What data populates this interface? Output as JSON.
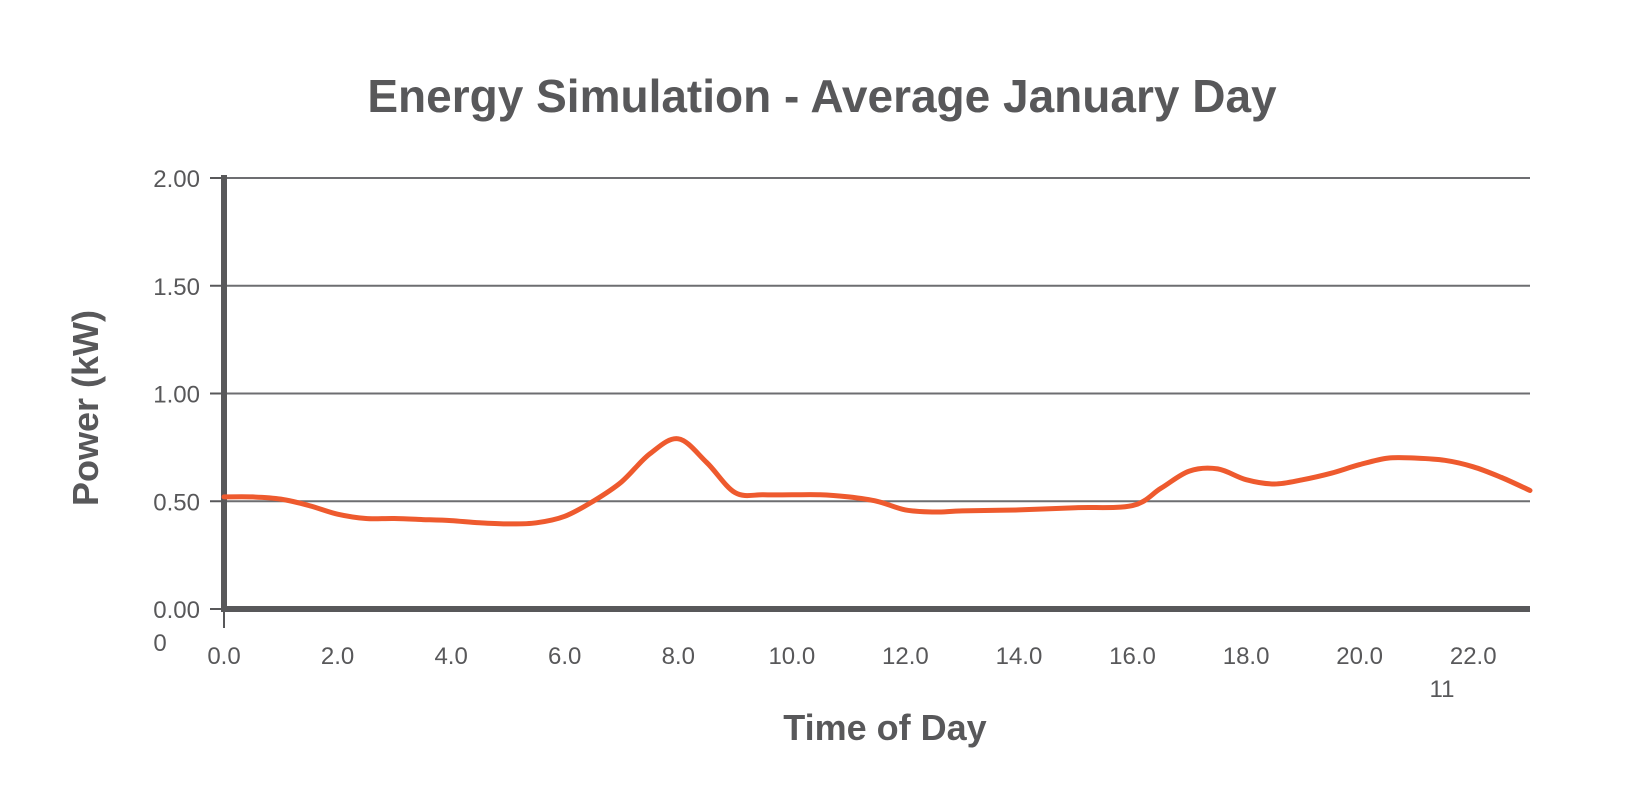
{
  "chart_data": {
    "type": "line",
    "title": "Energy Simulation - Average January Day",
    "xlabel": "Time of Day",
    "ylabel": "Power (kW)",
    "x_tick_labels": [
      "0.0",
      "2.0",
      "4.0",
      "6.0",
      "8.0",
      "10.0",
      "12.0",
      "14.0",
      "16.0",
      "18.0",
      "20.0",
      "22.0"
    ],
    "y_tick_labels": [
      "0.00",
      "0.50",
      "1.00",
      "1.50",
      "2.00"
    ],
    "stray_labels": {
      "below_y_zero": "0",
      "below_x_22": "11"
    },
    "xlim": [
      0,
      23
    ],
    "ylim": [
      0,
      2
    ],
    "grid": true,
    "colors": {
      "line": "#ee5a2e",
      "text": "#58585a",
      "grid": "#6d6e71"
    },
    "series": [
      {
        "x": [
          0,
          0.5,
          1,
          1.5,
          2,
          2.5,
          3,
          3.5,
          4,
          4.5,
          5,
          5.5,
          6,
          6.5,
          7,
          7.5,
          8,
          8.5,
          9,
          9.5,
          10,
          10.5,
          11,
          11.5,
          12,
          12.5,
          13,
          14,
          15,
          16,
          16.5,
          17,
          17.5,
          18,
          18.5,
          19,
          19.5,
          20,
          20.5,
          21,
          21.5,
          22,
          22.5,
          23
        ],
        "values": [
          0.52,
          0.52,
          0.51,
          0.48,
          0.44,
          0.42,
          0.42,
          0.415,
          0.41,
          0.4,
          0.395,
          0.4,
          0.43,
          0.5,
          0.59,
          0.72,
          0.79,
          0.68,
          0.54,
          0.53,
          0.53,
          0.53,
          0.52,
          0.5,
          0.46,
          0.45,
          0.455,
          0.46,
          0.47,
          0.48,
          0.56,
          0.64,
          0.65,
          0.6,
          0.58,
          0.6,
          0.63,
          0.67,
          0.7,
          0.7,
          0.69,
          0.66,
          0.61,
          0.55
        ]
      }
    ]
  }
}
